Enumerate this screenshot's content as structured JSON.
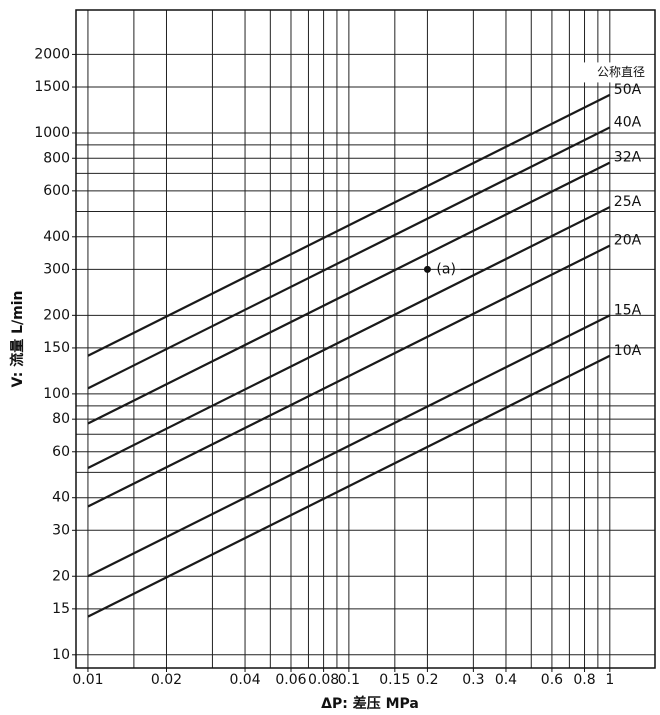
{
  "chart_data": {
    "type": "line",
    "x_label": "ΔP: 差压 MPa",
    "y_label": "V: 流量 L/min",
    "legend_title": "公称直径",
    "x": [
      0.01,
      1
    ],
    "series": [
      {
        "name": "50A",
        "color": "#1a1a1a",
        "values": [
          140,
          1400
        ]
      },
      {
        "name": "40A",
        "color": "#1a1a1a",
        "values": [
          105,
          1050
        ]
      },
      {
        "name": "32A",
        "color": "#1a1a1a",
        "values": [
          77,
          770
        ]
      },
      {
        "name": "25A",
        "color": "#1a1a1a",
        "values": [
          52,
          520
        ]
      },
      {
        "name": "20A",
        "color": "#1a1a1a",
        "values": [
          37,
          370
        ]
      },
      {
        "name": "15A",
        "color": "#1a1a1a",
        "values": [
          20,
          200
        ]
      },
      {
        "name": "10A",
        "color": "#1a1a1a",
        "values": [
          14,
          140
        ]
      }
    ],
    "annotation": {
      "text": "(a)",
      "x": 0.2,
      "y": 300
    },
    "log_x": true,
    "log_y": true,
    "grid": true,
    "xlim": [
      0.009,
      1.49
    ],
    "ylim": [
      8.9,
      2960
    ],
    "xticks": [
      0.01,
      0.02,
      0.04,
      0.06,
      0.08,
      0.1,
      0.15,
      0.2,
      0.3,
      0.4,
      0.6,
      0.8,
      1
    ],
    "yticks": [
      10,
      15,
      20,
      30,
      40,
      60,
      80,
      100,
      150,
      200,
      300,
      400,
      600,
      800,
      1000,
      1500,
      2000
    ],
    "xgrid": [
      0.01,
      0.015,
      0.02,
      0.03,
      0.04,
      0.05,
      0.06,
      0.07,
      0.08,
      0.09,
      0.1,
      0.15,
      0.2,
      0.3,
      0.4,
      0.5,
      0.6,
      0.7,
      0.8,
      0.9,
      1
    ],
    "ygrid": [
      10,
      15,
      20,
      30,
      40,
      50,
      60,
      70,
      80,
      90,
      100,
      150,
      200,
      300,
      400,
      500,
      600,
      700,
      800,
      900,
      1000,
      1500,
      2000
    ]
  }
}
